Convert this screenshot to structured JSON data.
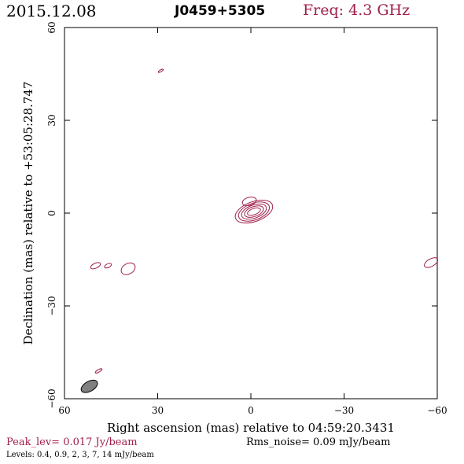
{
  "header": {
    "date": "2015.12.08",
    "source": "J0459+5305",
    "freq": "Freq: 4.3 GHz"
  },
  "footer": {
    "peak": "Peak_lev=  0.017 Jy/beam",
    "rms": "Rms_noise= 0.09 mJy/beam",
    "levels": "Levels: 0.4, 0.9,    2,    3,    7,   14 mJy/beam"
  },
  "colors": {
    "contour": "#a0204a",
    "beam_fill": "#808080",
    "axes": "#000000"
  },
  "chart_data": {
    "type": "contour",
    "xlabel": "Right ascension (mas) relative to 04:59:20.3431",
    "ylabel": "Declination (mas) relative to +53:05:28.747",
    "xlim": [
      60,
      -60
    ],
    "ylim": [
      -60,
      60
    ],
    "xticks": [
      60,
      30,
      0,
      -30,
      -60
    ],
    "yticks": [
      -60,
      -30,
      0,
      30,
      60
    ],
    "xtick_labels": [
      "60",
      "30",
      "0",
      "−30",
      "−60"
    ],
    "ytick_labels": [
      "−60",
      "−30",
      "0",
      "30",
      "60"
    ],
    "contour_levels_mJy": [
      0.4,
      0.9,
      2,
      3,
      7,
      14
    ],
    "peak_Jy_per_beam": 0.017,
    "rms_mJy_per_beam": 0.09,
    "main_component": {
      "x": -1,
      "y": 0.5,
      "pa_deg": 20,
      "contours": [
        {
          "a": 6.3,
          "b": 3.2
        },
        {
          "a": 5.2,
          "b": 2.7
        },
        {
          "a": 4.2,
          "b": 2.1
        },
        {
          "a": 3.2,
          "b": 1.6
        },
        {
          "a": 2.2,
          "b": 1.0
        }
      ]
    },
    "extension": {
      "x": 0.5,
      "y": 3.8,
      "a": 2.3,
      "b": 1.3,
      "pa_deg": 15
    },
    "noise_blobs": [
      {
        "x": 29,
        "y": 46,
        "a": 0.9,
        "b": 0.3,
        "pa_deg": 30
      },
      {
        "x": 50,
        "y": -17,
        "a": 1.7,
        "b": 0.8,
        "pa_deg": 25
      },
      {
        "x": 46,
        "y": -17,
        "a": 1.2,
        "b": 0.6,
        "pa_deg": 25
      },
      {
        "x": 39.5,
        "y": -18,
        "a": 2.4,
        "b": 1.7,
        "pa_deg": 30
      },
      {
        "x": 49,
        "y": -51,
        "a": 1.2,
        "b": 0.4,
        "pa_deg": 30
      },
      {
        "x": -58,
        "y": -16,
        "a": 2.4,
        "b": 1.2,
        "pa_deg": 30
      }
    ],
    "beam": {
      "x": 52,
      "y": -56,
      "a": 2.9,
      "b": 1.6,
      "pa_deg": 30
    }
  }
}
